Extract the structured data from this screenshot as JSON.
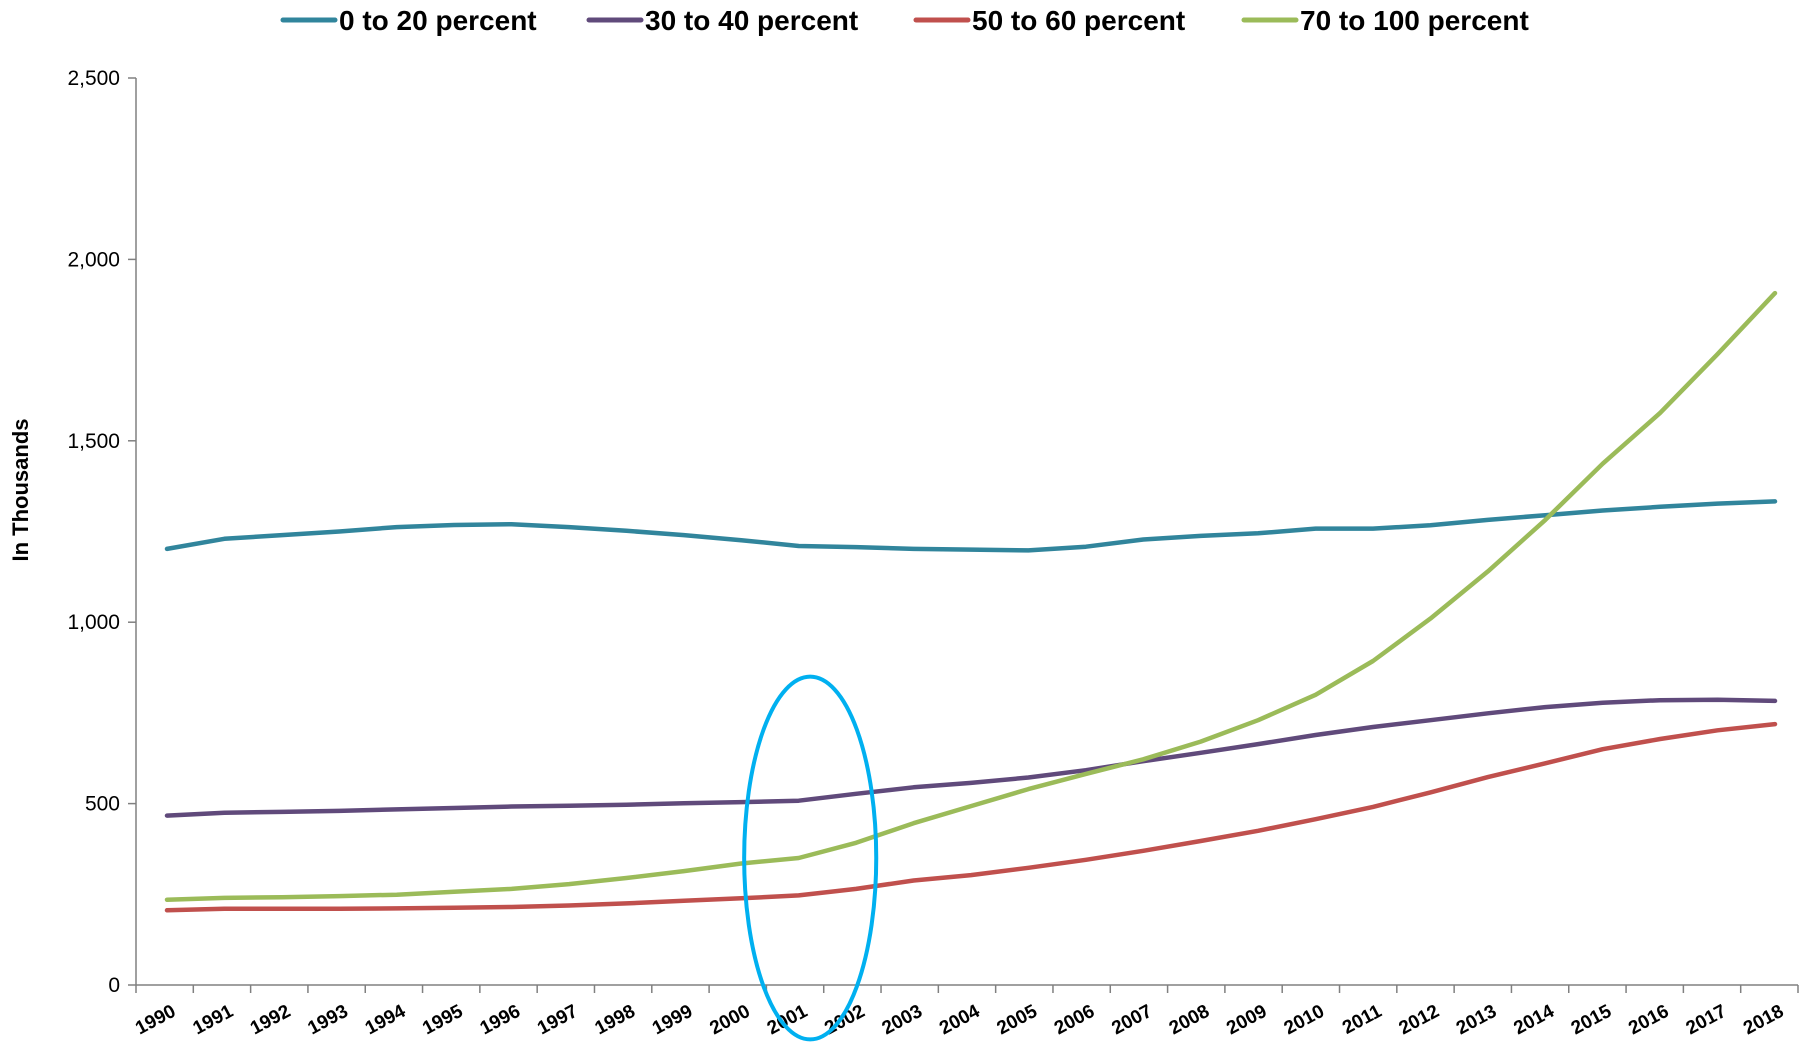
{
  "chart_data": {
    "type": "line",
    "title": "",
    "xlabel": "",
    "ylabel": "In Thousands",
    "ylim": [
      0,
      2500
    ],
    "yticks": [
      "0",
      "500",
      "1,000",
      "1,500",
      "2,000",
      "2,500"
    ],
    "ytick_values": [
      0,
      500,
      1000,
      1500,
      2000,
      2500
    ],
    "x": [
      "1990",
      "1991",
      "1992",
      "1993",
      "1994",
      "1995",
      "1996",
      "1997",
      "1998",
      "1999",
      "2000",
      "2001",
      "2002",
      "2003",
      "2004",
      "2005",
      "2006",
      "2007",
      "2008",
      "2009",
      "2010",
      "2011",
      "2012",
      "2013",
      "2014",
      "2015",
      "2016",
      "2017",
      "2018"
    ],
    "grid": false,
    "legend_position": "top",
    "series": [
      {
        "name": "0 to 20 percent",
        "color": "#31859C",
        "values": [
          1202,
          1230,
          1240,
          1250,
          1262,
          1268,
          1270,
          1262,
          1252,
          1240,
          1226,
          1210,
          1207,
          1202,
          1200,
          1198,
          1208,
          1228,
          1238,
          1245,
          1258,
          1258,
          1267,
          1282,
          1295,
          1308,
          1318,
          1327,
          1333
        ]
      },
      {
        "name": "30 to 40 percent",
        "color": "#604A7B",
        "values": [
          467,
          475,
          477,
          480,
          484,
          488,
          492,
          494,
          497,
          501,
          504,
          508,
          527,
          545,
          557,
          572,
          592,
          617,
          640,
          664,
          689,
          711,
          730,
          749,
          766,
          778,
          785,
          786,
          783
        ]
      },
      {
        "name": "50 to 60 percent",
        "color": "#C0504D",
        "values": [
          206,
          210,
          210,
          210,
          211,
          213,
          215,
          219,
          225,
          232,
          239,
          247,
          265,
          288,
          303,
          323,
          345,
          370,
          397,
          425,
          457,
          491,
          531,
          573,
          611,
          650,
          678,
          702,
          719
        ]
      },
      {
        "name": "70 to 100 percent",
        "color": "#9BBB59",
        "values": [
          235,
          240,
          242,
          245,
          249,
          257,
          265,
          278,
          295,
          314,
          335,
          350,
          392,
          446,
          493,
          540,
          582,
          622,
          671,
          730,
          800,
          893,
          1010,
          1140,
          1282,
          1437,
          1577,
          1739,
          1907
        ]
      }
    ],
    "annotations": [
      {
        "type": "ellipse",
        "shape": "ellipse",
        "color": "#00B0F0",
        "center_x_year": 2001.2,
        "center_y_value": 350,
        "span_years": 2.3,
        "span_value": 1000
      }
    ]
  }
}
